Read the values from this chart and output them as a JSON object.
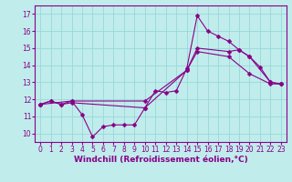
{
  "background_color": "#c0ecec",
  "line_color": "#880088",
  "grid_color": "#98d8d8",
  "xlabel": "Windchill (Refroidissement éolien,°C)",
  "xlabel_fontsize": 6.5,
  "tick_fontsize": 5.5,
  "xlim": [
    -0.5,
    23.5
  ],
  "ylim": [
    9.5,
    17.5
  ],
  "yticks": [
    10,
    11,
    12,
    13,
    14,
    15,
    16,
    17
  ],
  "xticks": [
    0,
    1,
    2,
    3,
    4,
    5,
    6,
    7,
    8,
    9,
    10,
    11,
    12,
    13,
    14,
    15,
    16,
    17,
    18,
    19,
    20,
    21,
    22,
    23
  ],
  "line1_x": [
    0,
    1,
    2,
    3,
    10,
    14,
    15,
    18,
    19,
    20,
    22,
    23
  ],
  "line1_y": [
    11.7,
    11.9,
    11.7,
    11.8,
    11.5,
    13.7,
    15.0,
    14.8,
    14.9,
    14.5,
    13.0,
    12.9
  ],
  "line2_x": [
    0,
    1,
    2,
    3,
    4,
    5,
    6,
    7,
    8,
    9,
    10,
    11,
    12,
    13,
    14,
    15,
    16,
    17,
    18,
    19,
    20,
    21,
    22,
    23
  ],
  "line2_y": [
    11.7,
    11.9,
    11.7,
    11.9,
    11.1,
    9.8,
    10.4,
    10.5,
    10.5,
    10.5,
    11.5,
    12.5,
    12.4,
    12.5,
    13.8,
    16.9,
    16.0,
    15.7,
    15.4,
    14.9,
    14.5,
    13.9,
    13.0,
    12.9
  ],
  "line3_x": [
    0,
    3,
    10,
    14,
    15,
    18,
    20,
    22,
    23
  ],
  "line3_y": [
    11.7,
    11.9,
    11.9,
    13.7,
    14.8,
    14.5,
    13.5,
    12.9,
    12.9
  ]
}
